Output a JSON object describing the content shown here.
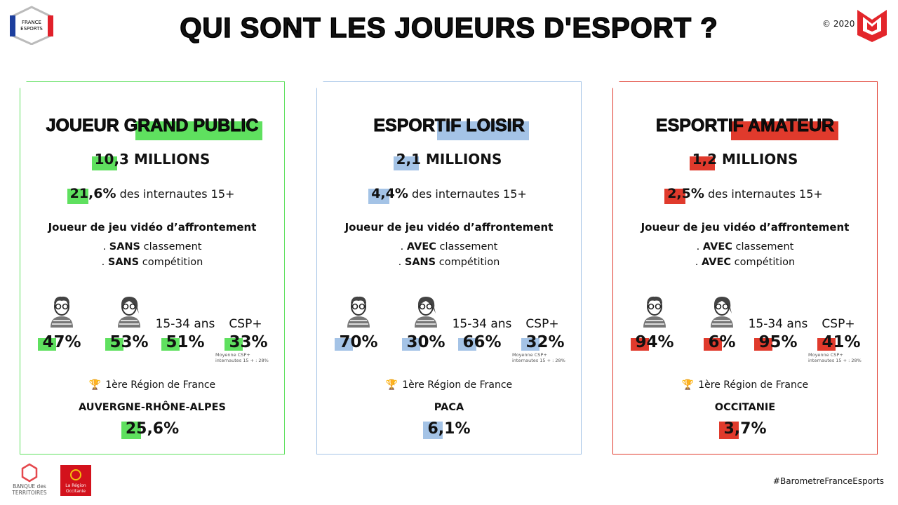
{
  "header": {
    "title": "QUI SONT LES JOUEURS D'ESPORT ?",
    "copyright": "© 2020",
    "logo_left": [
      "FRANCE",
      "ESPORTS"
    ]
  },
  "panels": [
    {
      "title": "JOUEUR GRAND PUBLIC",
      "color": "#5fe05f",
      "millions_value": "10,3",
      "millions_unit": "MILLIONS",
      "share_value": "21,6%",
      "share_text": "des internautes 15+",
      "description": "Joueur de jeu vidéo d’affrontement",
      "criteria": [
        {
          "bullet": ".",
          "bold": "SANS",
          "text": "classement"
        },
        {
          "bullet": ".",
          "bold": "SANS",
          "text": "compétition"
        }
      ],
      "men": "47%",
      "women": "53%",
      "age_label": "15-34 ans",
      "age_value": "51%",
      "csp_label": "CSP+",
      "csp_value": "33%",
      "csp_note": [
        "Moyenne CSP+",
        "internautes 15 + : 28%"
      ],
      "region_label": "1ère Région de France",
      "region_name": "AUVERGNE-RHÔNE-ALPES",
      "region_value": "25,6%"
    },
    {
      "title": "ESPORTIF LOISIR",
      "color": "#a4c3e6",
      "millions_value": "2,1",
      "millions_unit": "MILLIONS",
      "share_value": "4,4%",
      "share_text": "des internautes 15+",
      "description": "Joueur de jeu vidéo d’affrontement",
      "criteria": [
        {
          "bullet": ".",
          "bold": "AVEC",
          "text": "classement"
        },
        {
          "bullet": ".",
          "bold": "SANS",
          "text": "compétition"
        }
      ],
      "men": "70%",
      "women": "30%",
      "age_label": "15-34 ans",
      "age_value": "66%",
      "csp_label": "CSP+",
      "csp_value": "32%",
      "csp_note": [
        "Moyenne CSP+",
        "internautes 15 + : 28%"
      ],
      "region_label": "1ère Région de France",
      "region_name": "PACA",
      "region_value": "6,1%"
    },
    {
      "title": "ESPORTIF AMATEUR",
      "color": "#e03a2c",
      "millions_value": "1,2",
      "millions_unit": "MILLIONS",
      "share_value": "2,5%",
      "share_text": "des internautes 15+",
      "description": "Joueur de jeu vidéo d’affrontement",
      "criteria": [
        {
          "bullet": ".",
          "bold": "AVEC",
          "text": "classement"
        },
        {
          "bullet": ".",
          "bold": "AVEC",
          "text": "compétition"
        }
      ],
      "men": "94%",
      "women": "6%",
      "age_label": "15-34 ans",
      "age_value": "95%",
      "csp_label": "CSP+",
      "csp_value": "41%",
      "csp_note": [
        "Moyenne CSP+",
        "internautes 15 + : 28%"
      ],
      "region_label": "1ère Région de France",
      "region_name": "OCCITANIE",
      "region_value": "3,7%"
    }
  ],
  "footer": {
    "bank": [
      "BANQUE des",
      "TERRITOIRES"
    ],
    "region_logo": [
      "La Région",
      "Occitanie"
    ],
    "hashtag": "#BarometreFranceEsports"
  }
}
